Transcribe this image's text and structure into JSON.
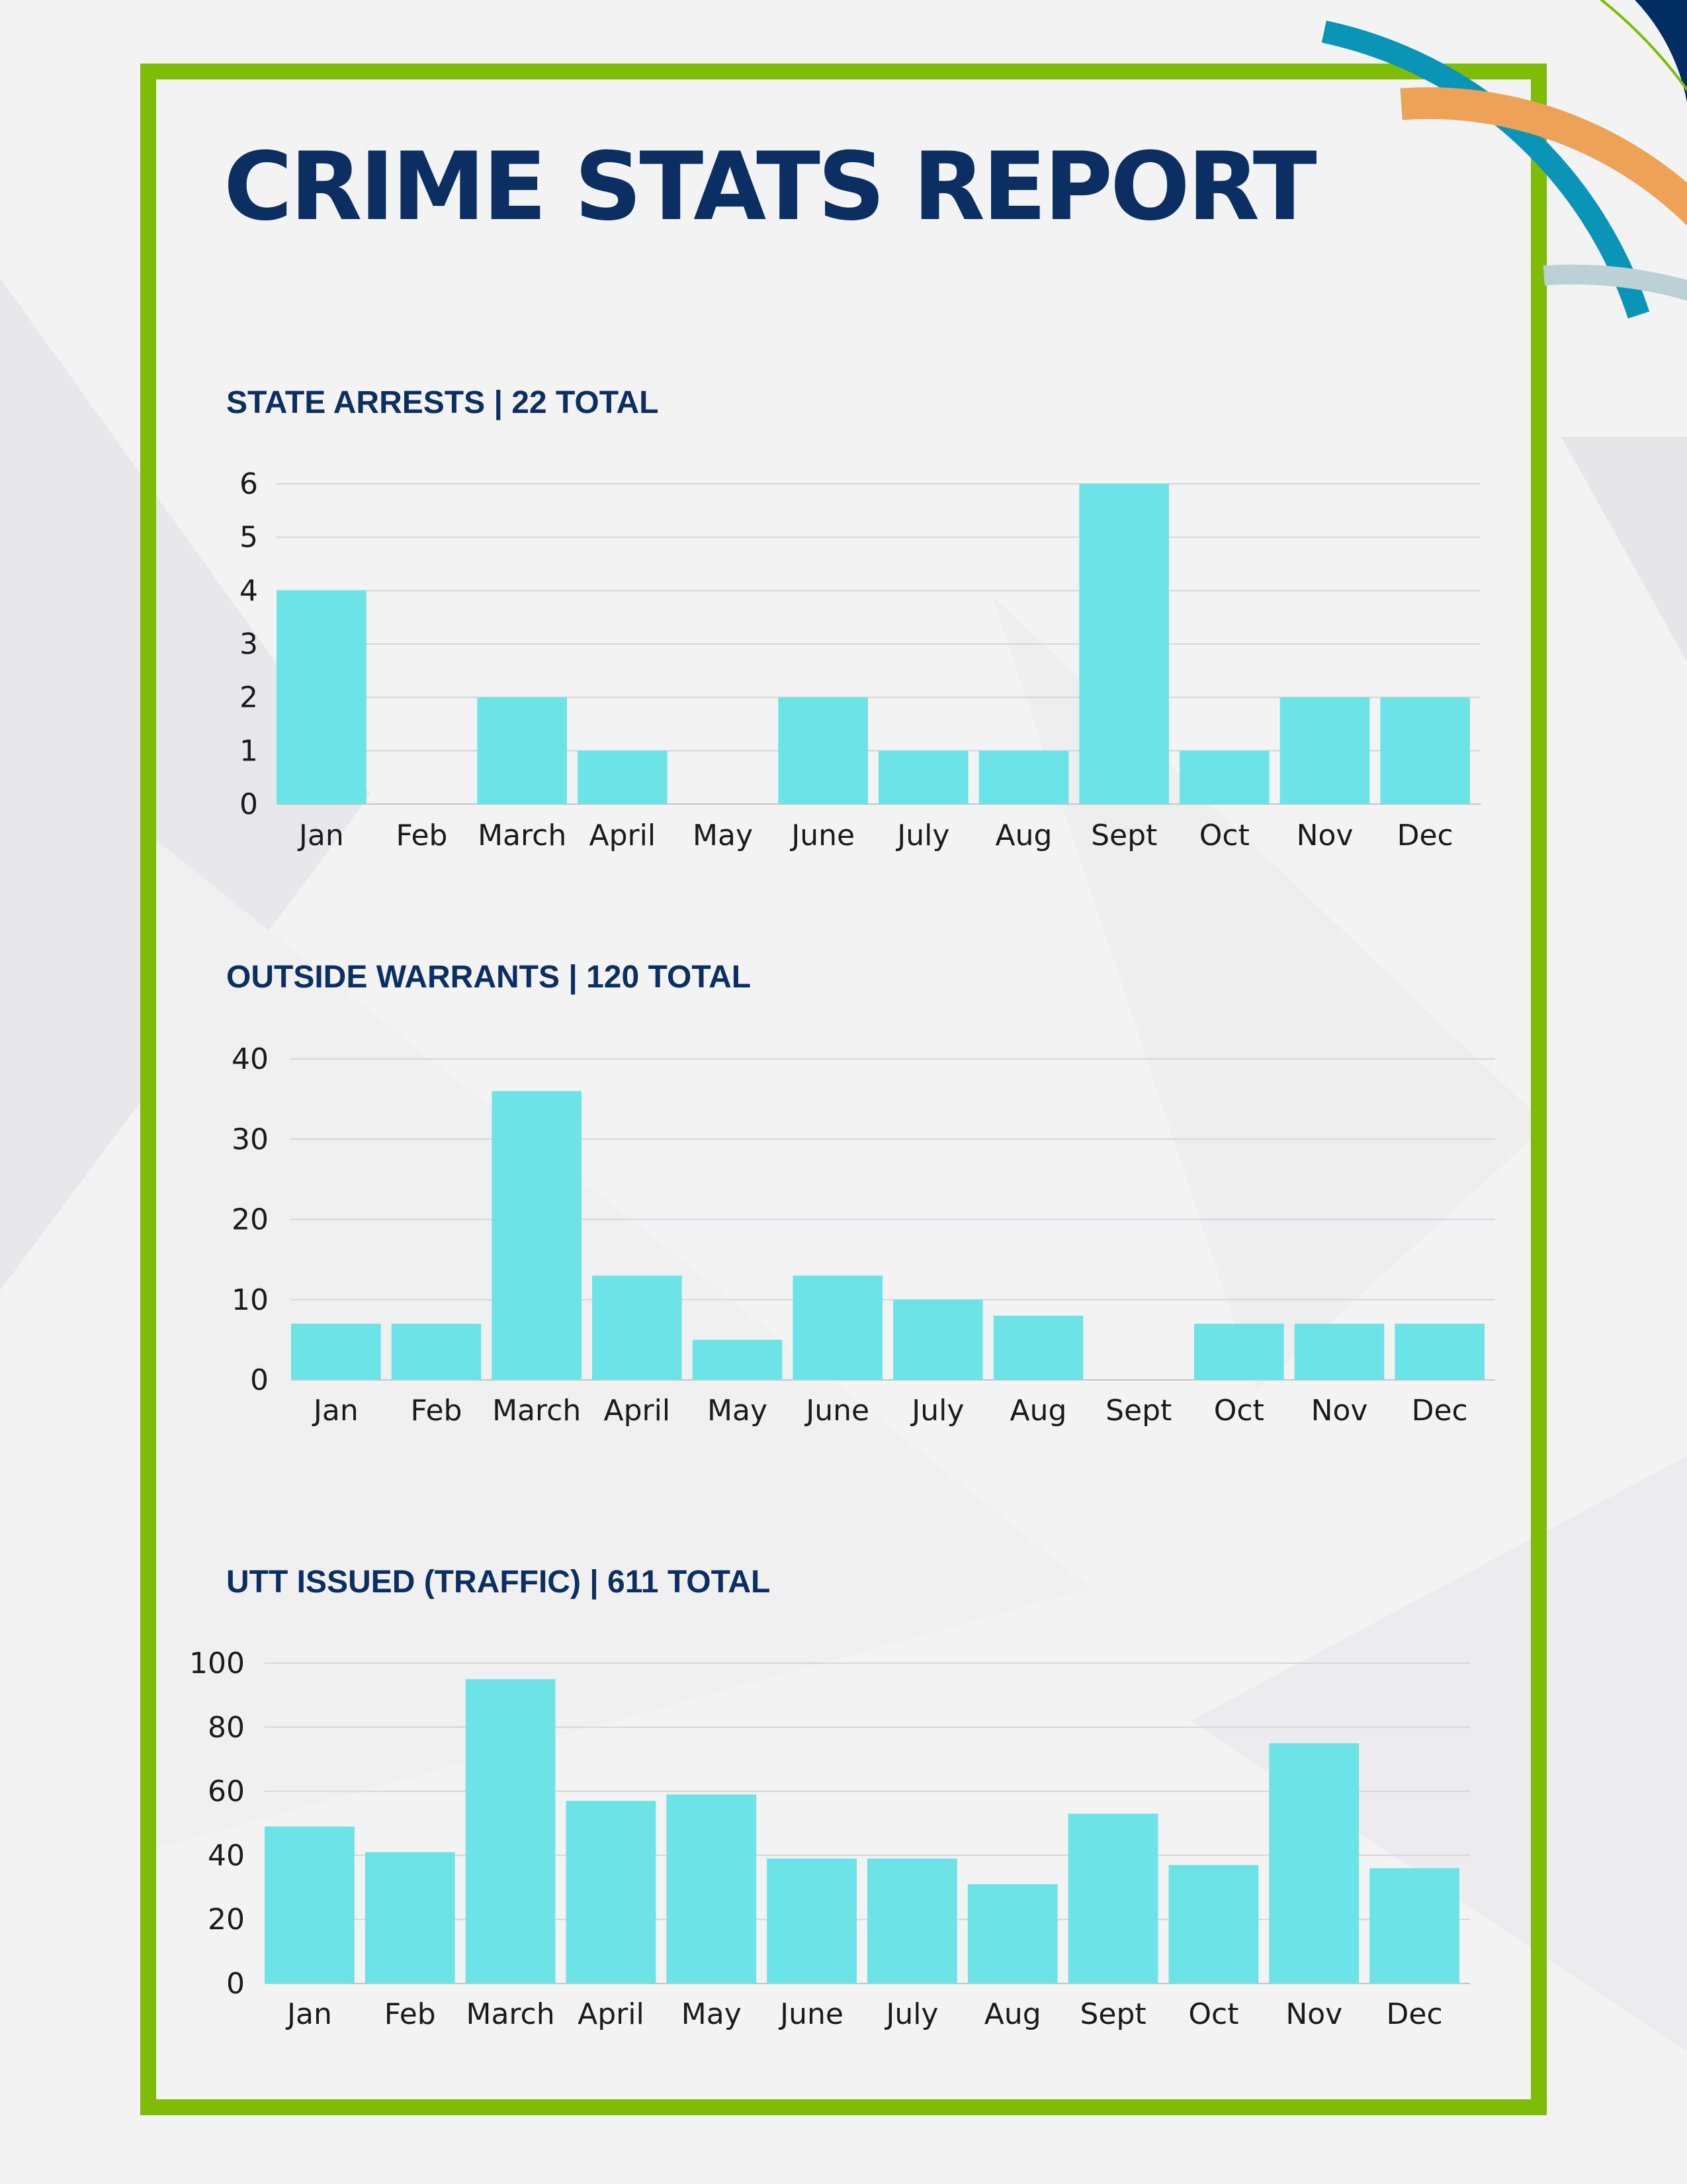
{
  "report": {
    "title": "CRIME STATS REPORT"
  },
  "colors": {
    "bar": "#6ce3e7",
    "frame": "#7fbc08",
    "title": "#0b2f63",
    "grid": "#d6d6d8",
    "arc_navy": "#002d62",
    "arc_teal": "#0a95b8",
    "arc_orange": "#eda257",
    "arc_grey": "#bcd1d6",
    "arc_line": "#7fbc08"
  },
  "sections": [
    {
      "title": "STATE ARRESTS | 22 TOTAL"
    },
    {
      "title": "OUTSIDE WARRANTS | 120 TOTAL"
    },
    {
      "title": "UTT ISSUED (TRAFFIC) | 611 TOTAL"
    }
  ],
  "chart_data": [
    {
      "type": "bar",
      "title": "STATE ARRESTS | 22 TOTAL",
      "categories": [
        "Jan",
        "Feb",
        "March",
        "April",
        "May",
        "June",
        "July",
        "Aug",
        "Sept",
        "Oct",
        "Nov",
        "Dec"
      ],
      "values": [
        4,
        0,
        2,
        1,
        0,
        2,
        1,
        1,
        6,
        1,
        2,
        2
      ],
      "yticks": [
        "0",
        "1",
        "2",
        "3",
        "4",
        "5",
        "6"
      ],
      "ylim": [
        0,
        6
      ],
      "grid": true,
      "legend": "none"
    },
    {
      "type": "bar",
      "title": "OUTSIDE WARRANTS | 120 TOTAL",
      "categories": [
        "Jan",
        "Feb",
        "March",
        "April",
        "May",
        "June",
        "July",
        "Aug",
        "Sept",
        "Oct",
        "Nov",
        "Dec"
      ],
      "values": [
        7,
        7,
        36,
        13,
        5,
        13,
        10,
        8,
        0,
        7,
        7,
        7
      ],
      "yticks": [
        "0",
        "10",
        "20",
        "30",
        "40"
      ],
      "ylim": [
        0,
        40
      ],
      "grid": true,
      "legend": "none"
    },
    {
      "type": "bar",
      "title": "UTT ISSUED (TRAFFIC) | 611 TOTAL",
      "categories": [
        "Jan",
        "Feb",
        "March",
        "April",
        "May",
        "June",
        "July",
        "Aug",
        "Sept",
        "Oct",
        "Nov",
        "Dec"
      ],
      "values": [
        49,
        41,
        95,
        57,
        59,
        39,
        39,
        31,
        53,
        37,
        75,
        36
      ],
      "yticks": [
        "0",
        "20",
        "40",
        "60",
        "80",
        "100"
      ],
      "ylim": [
        0,
        100
      ],
      "grid": true,
      "legend": "none"
    }
  ]
}
